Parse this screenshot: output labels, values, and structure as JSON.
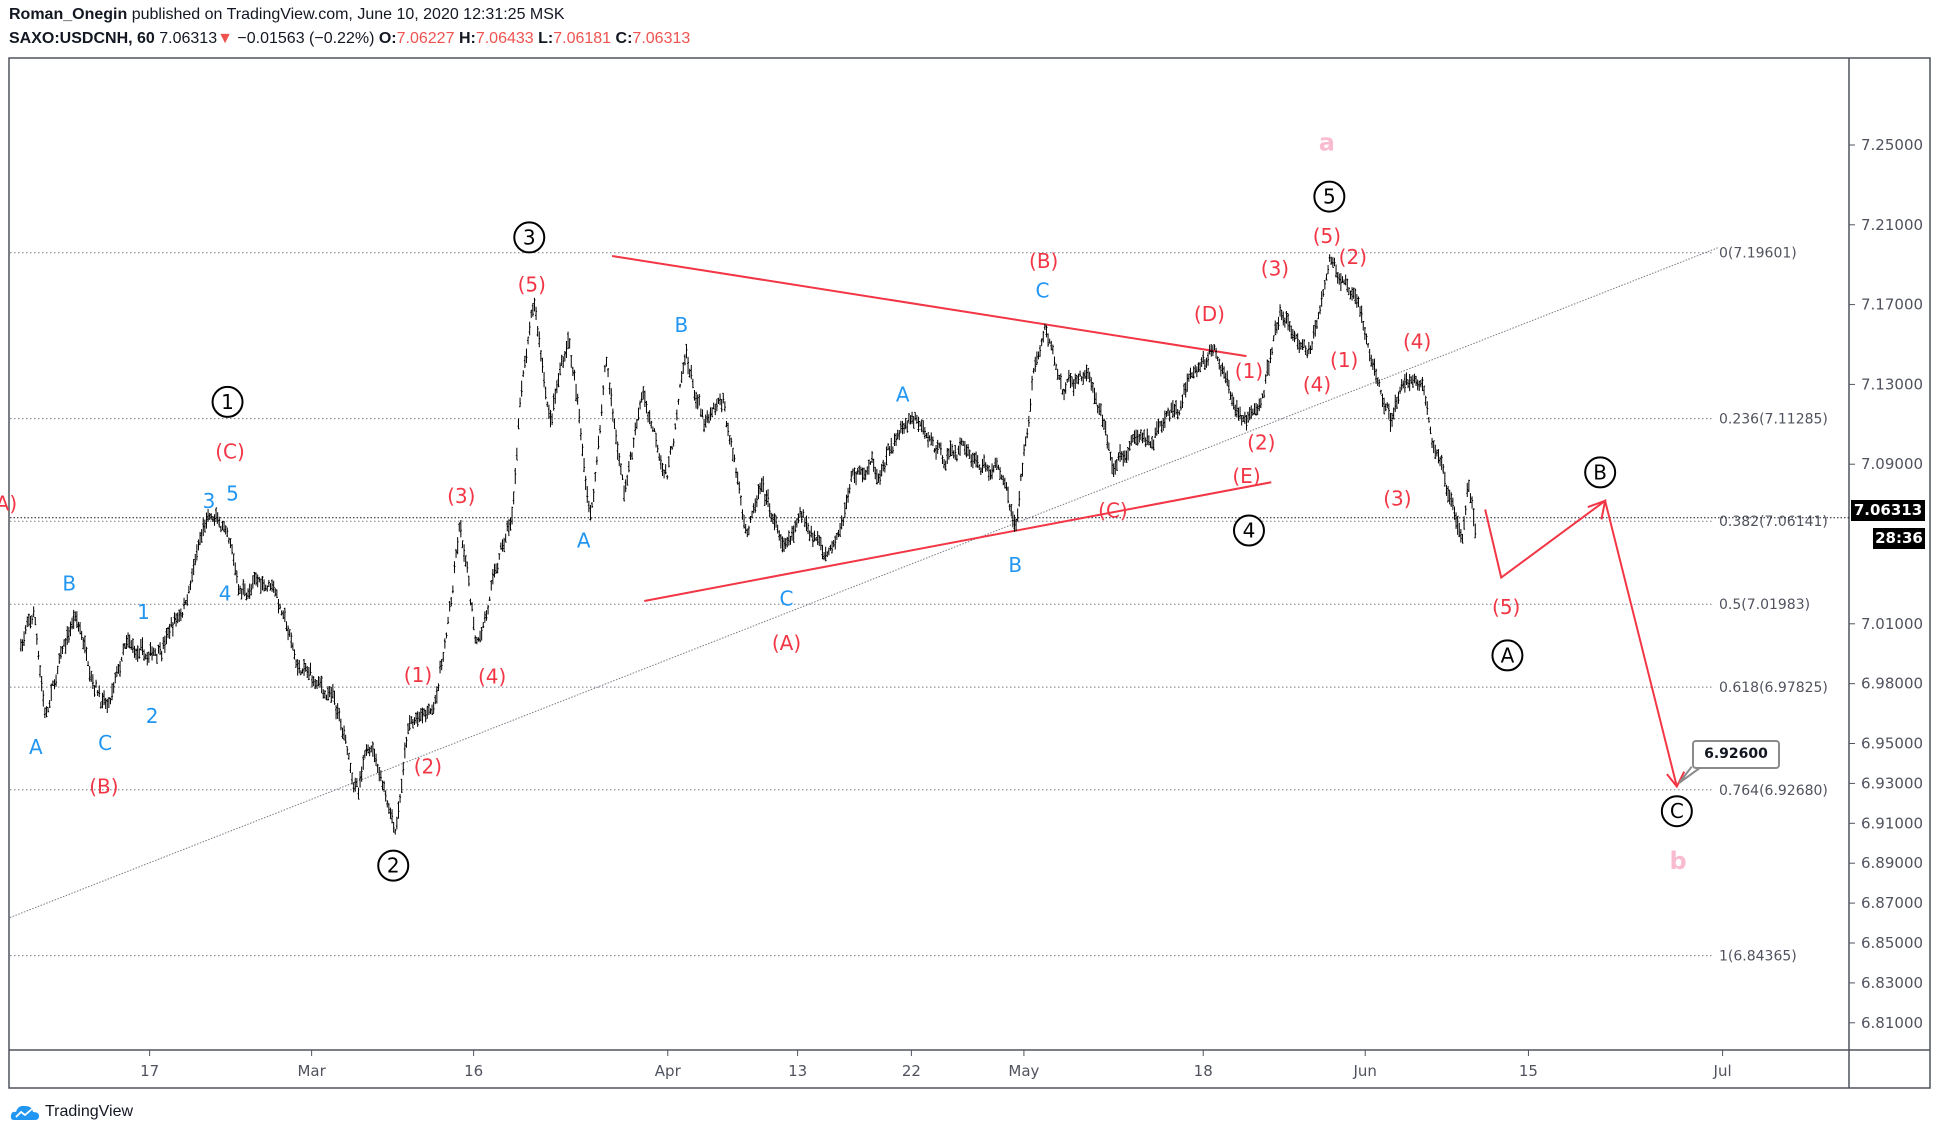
{
  "header": {
    "author": "Roman_Onegin",
    "published": "published on TradingView.com, June 10, 2020 12:31:25 MSK",
    "symbol": "SAXO:USDCNH, 60",
    "last": "7.06313",
    "change": "−0.01563 (−0.22%)",
    "o_label": "O:",
    "o": "7.06227",
    "h_label": "H:",
    "h": "7.06433",
    "l_label": "L:",
    "l": "7.06181",
    "c_label": "C:",
    "c": "7.06313"
  },
  "footer": {
    "brand": "TradingView"
  },
  "colors": {
    "bars": "#000000",
    "red": "#f23645",
    "blue": "#2196f3",
    "pink": "#f8bbd0",
    "circle": "#000000",
    "fib": "#787b86"
  },
  "chart_data": {
    "type": "ohlc-bar",
    "interval": "60",
    "y_ticks": [
      "7.25000",
      "7.21000",
      "7.17000",
      "7.13000",
      "7.09000",
      "7.01000",
      "6.98000",
      "6.95000",
      "6.93000",
      "6.91000",
      "6.89000",
      "6.87000",
      "6.85000",
      "6.83000",
      "6.81000"
    ],
    "x_ticks": [
      {
        "label": "17",
        "date": "2020-02-17"
      },
      {
        "label": "Mar",
        "date": "2020-03-01"
      },
      {
        "label": "16",
        "date": "2020-03-16"
      },
      {
        "label": "Apr",
        "date": "2020-04-01"
      },
      {
        "label": "13",
        "date": "2020-04-13"
      },
      {
        "label": "22",
        "date": "2020-04-22"
      },
      {
        "label": "May",
        "date": "2020-05-01"
      },
      {
        "label": "18",
        "date": "2020-05-18"
      },
      {
        "label": "Jun",
        "date": "2020-06-01"
      },
      {
        "label": "15",
        "date": "2020-06-15"
      },
      {
        "label": "Jul",
        "date": "2020-07-01"
      }
    ],
    "last_price": "7.06313",
    "countdown": "28:36",
    "price_path": [
      [
        "2020-02-06T16",
        7.001
      ],
      [
        "2020-02-07T18",
        7.013
      ],
      [
        "2020-02-08T16",
        6.964
      ],
      [
        "2020-02-10T23",
        7.013
      ],
      [
        "2020-02-13T17",
        6.967
      ],
      [
        "2020-02-15T02",
        6.995
      ],
      [
        "2020-02-16T22",
        6.989
      ],
      [
        "2020-02-19T16",
        7.019
      ],
      [
        "2020-02-21T12",
        7.06
      ],
      [
        "2020-02-22T21",
        7.057
      ],
      [
        "2020-02-24T06",
        7.026
      ],
      [
        "2020-02-26T23",
        7.032
      ],
      [
        "2020-02-28T19",
        6.989
      ],
      [
        "2020-03-03T01",
        6.97
      ],
      [
        "2020-03-05T08",
        6.924
      ],
      [
        "2020-03-06T12",
        6.952
      ],
      [
        "2020-03-08T19",
        6.911
      ],
      [
        "2020-03-09T22",
        6.958
      ],
      [
        "2020-03-12T05",
        6.964
      ],
      [
        "2020-03-13T22",
        7.019
      ],
      [
        "2020-03-14T17",
        7.057
      ],
      [
        "2020-03-16T05",
        7.001
      ],
      [
        "2020-03-17T17",
        7.032
      ],
      [
        "2020-03-19T06",
        7.063
      ],
      [
        "2020-03-19T18",
        7.118
      ],
      [
        "2020-03-21T00",
        7.168
      ],
      [
        "2020-03-22T08",
        7.112
      ],
      [
        "2020-03-23T20",
        7.155
      ],
      [
        "2020-03-25T16",
        7.063
      ],
      [
        "2020-03-26T22",
        7.143
      ],
      [
        "2020-03-28T10",
        7.075
      ],
      [
        "2020-03-29T23",
        7.125
      ],
      [
        "2020-04-01T00",
        7.087
      ],
      [
        "2020-04-02T17",
        7.143
      ],
      [
        "2020-04-04T10",
        7.106
      ],
      [
        "2020-04-06T03",
        7.118
      ],
      [
        "2020-04-08T10",
        7.057
      ],
      [
        "2020-04-09T14",
        7.075
      ],
      [
        "2020-04-11T21",
        7.044
      ],
      [
        "2020-04-13T12",
        7.063
      ],
      [
        "2020-04-15T11",
        7.047
      ],
      [
        "2020-04-17T10",
        7.087
      ],
      [
        "2020-04-19T09",
        7.087
      ],
      [
        "2020-04-21T19",
        7.112
      ],
      [
        "2020-04-24T06",
        7.094
      ],
      [
        "2020-04-26T06",
        7.1
      ],
      [
        "2020-04-28T06",
        7.087
      ],
      [
        "2020-04-29T05",
        7.087
      ],
      [
        "2020-04-30T10",
        7.06
      ],
      [
        "2020-05-01T20",
        7.137
      ],
      [
        "2020-05-03T00",
        7.159
      ],
      [
        "2020-05-04T18",
        7.125
      ],
      [
        "2020-05-07T02",
        7.137
      ],
      [
        "2020-05-09T10",
        7.087
      ],
      [
        "2020-05-11T18",
        7.1
      ],
      [
        "2020-05-13T12",
        7.106
      ],
      [
        "2020-05-15T21",
        7.118
      ],
      [
        "2020-05-17T01",
        7.131
      ],
      [
        "2020-05-18T18",
        7.146
      ],
      [
        "2020-05-20T08",
        7.125
      ],
      [
        "2020-05-21T23",
        7.109
      ],
      [
        "2020-05-23T01",
        7.125
      ],
      [
        "2020-05-24T15",
        7.162
      ],
      [
        "2020-05-26T06",
        7.149
      ],
      [
        "2020-05-27T07",
        7.143
      ],
      [
        "2020-05-28T22",
        7.199
      ],
      [
        "2020-05-30T12",
        7.174
      ],
      [
        "2020-05-31T14",
        7.162
      ],
      [
        "2020-06-01T15",
        7.137
      ],
      [
        "2020-06-03T05",
        7.112
      ],
      [
        "2020-06-04T07",
        7.131
      ],
      [
        "2020-06-05T22",
        7.131
      ],
      [
        "2020-06-06T22",
        7.1
      ],
      [
        "2020-06-08T00",
        7.075
      ],
      [
        "2020-06-09T07",
        7.06
      ],
      [
        "2020-06-09T20",
        7.09
      ],
      [
        "2020-06-10T12",
        7.063
      ]
    ],
    "fib_levels": [
      {
        "label": "0(7.19601)",
        "price": 7.19601
      },
      {
        "label": "0.236(7.11285)",
        "price": 7.11285
      },
      {
        "label": "0.382(7.06141)",
        "price": 7.06141
      },
      {
        "label": "0.5(7.01983)",
        "price": 7.01983
      },
      {
        "label": "0.618(6.97825)",
        "price": 6.97825
      },
      {
        "label": "0.764(6.92680)",
        "price": 6.9268
      },
      {
        "label": "1(6.84365)",
        "price": 6.84365
      }
    ],
    "target_callout": "6.92600",
    "annotations": [
      {
        "text": "A",
        "style": "blue"
      },
      {
        "text": "B",
        "style": "blue"
      },
      {
        "text": "C",
        "style": "blue"
      },
      {
        "text": "1",
        "style": "blue"
      },
      {
        "text": "2",
        "style": "blue"
      },
      {
        "text": "3",
        "style": "blue"
      },
      {
        "text": "5",
        "style": "blue"
      },
      {
        "text": "4",
        "style": "blue"
      },
      {
        "text": "A",
        "style": "blue"
      },
      {
        "text": "B",
        "style": "blue"
      },
      {
        "text": "A",
        "style": "blue"
      },
      {
        "text": "C",
        "style": "blue"
      },
      {
        "text": "B",
        "style": "blue"
      },
      {
        "text": "C",
        "style": "blue"
      },
      {
        "text": "(A)",
        "style": "red"
      },
      {
        "text": "(C)",
        "style": "red"
      },
      {
        "text": "(B)",
        "style": "red"
      },
      {
        "text": "(1)",
        "style": "red"
      },
      {
        "text": "(2)",
        "style": "red"
      },
      {
        "text": "(3)",
        "style": "red"
      },
      {
        "text": "(4)",
        "style": "red"
      },
      {
        "text": "(5)",
        "style": "red"
      },
      {
        "text": "(A)",
        "style": "red"
      },
      {
        "text": "(B)",
        "style": "red"
      },
      {
        "text": "(C)",
        "style": "red"
      },
      {
        "text": "(D)",
        "style": "red"
      },
      {
        "text": "(E)",
        "style": "red"
      },
      {
        "text": "(1)",
        "style": "red"
      },
      {
        "text": "(2)",
        "style": "red"
      },
      {
        "text": "(3)",
        "style": "red"
      },
      {
        "text": "(4)",
        "style": "red"
      },
      {
        "text": "(5)",
        "style": "red"
      },
      {
        "text": "(2)",
        "style": "red"
      },
      {
        "text": "(1)",
        "style": "red"
      },
      {
        "text": "(4)",
        "style": "red"
      },
      {
        "text": "(3)",
        "style": "red"
      },
      {
        "text": "(5)",
        "style": "red"
      },
      {
        "text": "1",
        "style": "circle"
      },
      {
        "text": "2",
        "style": "circle"
      },
      {
        "text": "3",
        "style": "circle"
      },
      {
        "text": "4",
        "style": "circle"
      },
      {
        "text": "5",
        "style": "circle"
      },
      {
        "text": "A",
        "style": "circle"
      },
      {
        "text": "B",
        "style": "circle"
      },
      {
        "text": "C",
        "style": "circle"
      },
      {
        "text": "a",
        "style": "pink"
      },
      {
        "text": "b",
        "style": "pink"
      }
    ]
  }
}
